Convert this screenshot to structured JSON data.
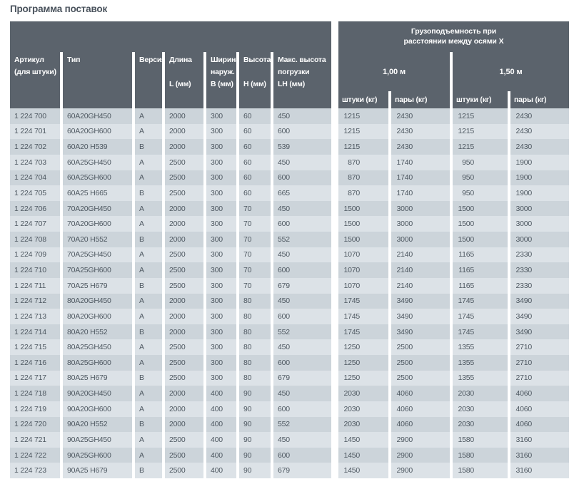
{
  "page": {
    "title": "Программа поставок"
  },
  "colors": {
    "header_bg": "#5b636c",
    "row_dark": "#ccd4da",
    "row_light": "#dce2e7",
    "header_text": "#ffffff",
    "body_text": "#4e5861"
  },
  "table": {
    "header": {
      "article": {
        "line1": "Артикул",
        "line2": "(для штуки)"
      },
      "type": "Тип",
      "version": "Версия",
      "length": {
        "line1": "Длина",
        "unit": "L (мм)"
      },
      "width": {
        "line1": "Ширина",
        "line2": "наруж.",
        "unit": "B (мм)"
      },
      "height": {
        "line1": "Высота",
        "unit": "H (мм)"
      },
      "max_load_height": {
        "line1": "Макс. высота",
        "line2": "погрузки",
        "unit": "LH (мм)"
      },
      "capacity_group": {
        "line1": "Грузоподъемность при",
        "line2": "расстоянии между осями X"
      },
      "axis_1_00": "1,00 м",
      "axis_1_50": "1,50 м",
      "units_kg_1": "штуки (кг)",
      "pairs_kg_1": "пары (кг)",
      "units_kg_2": "штуки (кг)",
      "pairs_kg_2": "пары (кг)"
    },
    "rows": [
      [
        "1 224 700",
        "60A20GH450",
        "A",
        "2000",
        "300",
        "60",
        "450",
        "1215",
        "2430",
        "1215",
        "2430"
      ],
      [
        "1 224 701",
        "60A20GH600",
        "A",
        "2000",
        "300",
        "60",
        "600",
        "1215",
        "2430",
        "1215",
        "2430"
      ],
      [
        "1 224 702",
        "60A20 H539",
        "B",
        "2000",
        "300",
        "60",
        "539",
        "1215",
        "2430",
        "1215",
        "2430"
      ],
      [
        "1 224 703",
        "60A25GH450",
        "A",
        "2500",
        "300",
        "60",
        "450",
        "870",
        "1740",
        "950",
        "1900"
      ],
      [
        "1 224 704",
        "60A25GH600",
        "A",
        "2500",
        "300",
        "60",
        "600",
        "870",
        "1740",
        "950",
        "1900"
      ],
      [
        "1 224 705",
        "60A25 H665",
        "B",
        "2500",
        "300",
        "60",
        "665",
        "870",
        "1740",
        "950",
        "1900"
      ],
      [
        "1 224 706",
        "70A20GH450",
        "A",
        "2000",
        "300",
        "70",
        "450",
        "1500",
        "3000",
        "1500",
        "3000"
      ],
      [
        "1 224 707",
        "70A20GH600",
        "A",
        "2000",
        "300",
        "70",
        "600",
        "1500",
        "3000",
        "1500",
        "3000"
      ],
      [
        "1 224 708",
        "70A20 H552",
        "B",
        "2000",
        "300",
        "70",
        "552",
        "1500",
        "3000",
        "1500",
        "3000"
      ],
      [
        "1 224 709",
        "70A25GH450",
        "A",
        "2500",
        "300",
        "70",
        "450",
        "1070",
        "2140",
        "1165",
        "2330"
      ],
      [
        "1 224 710",
        "70A25GH600",
        "A",
        "2500",
        "300",
        "70",
        "600",
        "1070",
        "2140",
        "1165",
        "2330"
      ],
      [
        "1 224 711",
        "70A25 H679",
        "B",
        "2500",
        "300",
        "70",
        "679",
        "1070",
        "2140",
        "1165",
        "2330"
      ],
      [
        "1 224 712",
        "80A20GH450",
        "A",
        "2000",
        "300",
        "80",
        "450",
        "1745",
        "3490",
        "1745",
        "3490"
      ],
      [
        "1 224 713",
        "80A20GH600",
        "A",
        "2000",
        "300",
        "80",
        "600",
        "1745",
        "3490",
        "1745",
        "3490"
      ],
      [
        "1 224 714",
        "80A20 H552",
        "B",
        "2000",
        "300",
        "80",
        "552",
        "1745",
        "3490",
        "1745",
        "3490"
      ],
      [
        "1 224 715",
        "80A25GH450",
        "A",
        "2500",
        "300",
        "80",
        "450",
        "1250",
        "2500",
        "1355",
        "2710"
      ],
      [
        "1 224 716",
        "80A25GH600",
        "A",
        "2500",
        "300",
        "80",
        "600",
        "1250",
        "2500",
        "1355",
        "2710"
      ],
      [
        "1 224 717",
        "80A25 H679",
        "B",
        "2500",
        "300",
        "80",
        "679",
        "1250",
        "2500",
        "1355",
        "2710"
      ],
      [
        "1 224 718",
        "90A20GH450",
        "A",
        "2000",
        "400",
        "90",
        "450",
        "2030",
        "4060",
        "2030",
        "4060"
      ],
      [
        "1 224 719",
        "90A20GH600",
        "A",
        "2000",
        "400",
        "90",
        "600",
        "2030",
        "4060",
        "2030",
        "4060"
      ],
      [
        "1 224 720",
        "90A20 H552",
        "B",
        "2000",
        "400",
        "90",
        "552",
        "2030",
        "4060",
        "2030",
        "4060"
      ],
      [
        "1 224 721",
        "90A25GH450",
        "A",
        "2500",
        "400",
        "90",
        "450",
        "1450",
        "2900",
        "1580",
        "3160"
      ],
      [
        "1 224 722",
        "90A25GH600",
        "A",
        "2500",
        "400",
        "90",
        "600",
        "1450",
        "2900",
        "1580",
        "3160"
      ],
      [
        "1 224 723",
        "90A25 H679",
        "B",
        "2500",
        "400",
        "90",
        "679",
        "1450",
        "2900",
        "1580",
        "3160"
      ]
    ]
  }
}
